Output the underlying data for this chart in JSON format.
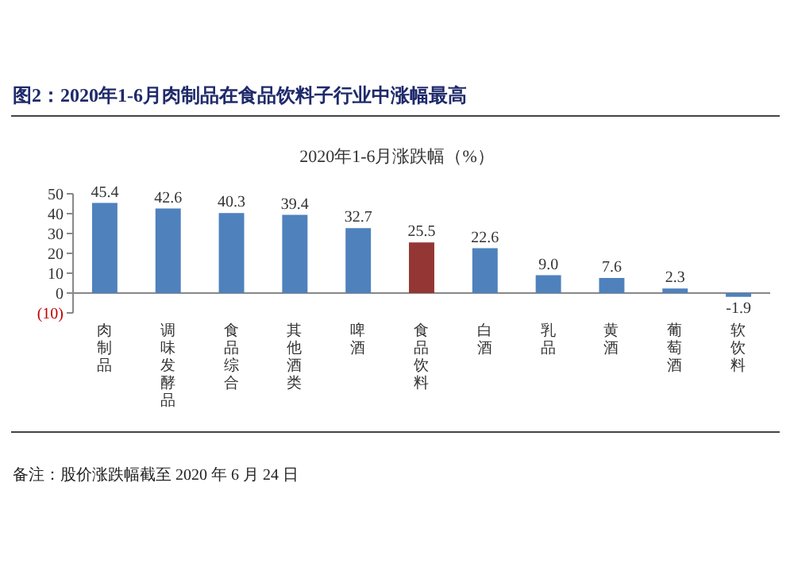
{
  "chart_data": {
    "type": "bar",
    "title": "图2：2020年1-6月肉制品在食品饮料子行业中涨幅最高",
    "subtitle": "2020年1-6月涨跌幅（%）",
    "categories": [
      "肉制品",
      "调味发酵品",
      "食品综合",
      "其他酒类",
      "啤酒",
      "食品饮料",
      "白酒",
      "乳品",
      "黄酒",
      "葡萄酒",
      "软饮料"
    ],
    "values": [
      45.4,
      42.6,
      40.3,
      39.4,
      32.7,
      25.5,
      22.6,
      9.0,
      7.6,
      2.3,
      -1.9
    ],
    "value_labels": [
      "45.4",
      "42.6",
      "40.3",
      "39.4",
      "32.7",
      "25.5",
      "22.6",
      "9.0",
      "7.6",
      "2.3",
      "-1.9"
    ],
    "colors": [
      "#4f81bd",
      "#4f81bd",
      "#4f81bd",
      "#4f81bd",
      "#4f81bd",
      "#943634",
      "#4f81bd",
      "#4f81bd",
      "#4f81bd",
      "#4f81bd",
      "#4f81bd"
    ],
    "ylim": [
      -10,
      50
    ],
    "yticks": [
      {
        "value": -10,
        "label": "(10)"
      },
      0,
      10,
      20,
      30,
      40,
      50
    ],
    "grid": false,
    "annotations": [
      "备注：股价涨跌幅截至 2020 年 6 月 24 日"
    ]
  }
}
